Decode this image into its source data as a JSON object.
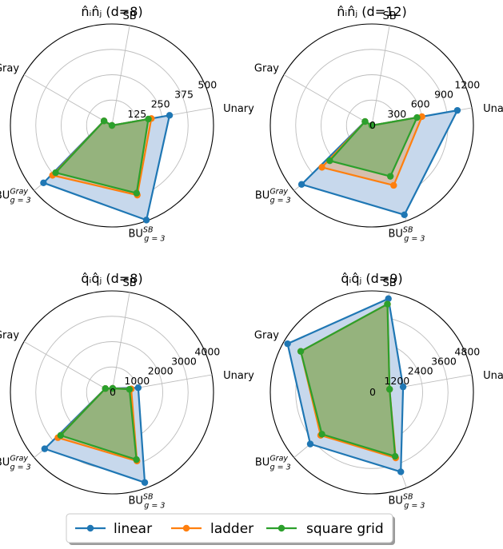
{
  "legend": {
    "items": [
      {
        "label": "linear",
        "color": "#1f77b4"
      },
      {
        "label": "ladder",
        "color": "#ff7f0e"
      },
      {
        "label": "square grid",
        "color": "#2ca02c"
      }
    ]
  },
  "chart_data": [
    {
      "type": "radar",
      "title": "n̂ᵢn̂ⱼ (d=8)",
      "title_parts": {
        "op": "n",
        "d": "d=8"
      },
      "axes": [
        "Unary",
        "SB",
        "Gray",
        "BU_Gray_g=3",
        "BU_SB_g=3"
      ],
      "axis_labels": [
        "Unary",
        "SB",
        "Gray",
        "BU",
        "BU"
      ],
      "axis_superscripts": [
        "",
        "",
        "",
        "Gray",
        "SB"
      ],
      "axis_subscripts": [
        "",
        "",
        "",
        "g = 3",
        "g = 3"
      ],
      "rmax": 500,
      "rticks": [
        125,
        250,
        375,
        500
      ],
      "rtick_labels": [
        "125",
        "250",
        "375",
        "500"
      ],
      "show_zero": false,
      "series": [
        {
          "name": "linear",
          "values": [
            288,
            0,
            45,
            440,
            496
          ]
        },
        {
          "name": "ladder",
          "values": [
            197,
            0,
            45,
            382,
            365
          ]
        },
        {
          "name": "square grid",
          "values": [
            182,
            0,
            45,
            362,
            355
          ]
        }
      ]
    },
    {
      "type": "radar",
      "title": "n̂ᵢn̂ⱼ (d=12)",
      "title_parts": {
        "op": "n",
        "d": "d=12"
      },
      "axes": [
        "Unary",
        "SB",
        "Gray",
        "BU_Gray_g=3",
        "BU_SB_g=3"
      ],
      "axis_labels": [
        "Unary",
        "SB",
        "Gray",
        "BU",
        "BU"
      ],
      "axis_superscripts": [
        "",
        "",
        "",
        "Gray",
        "SB"
      ],
      "axis_subscripts": [
        "",
        "",
        "",
        "g = 3",
        "g = 3"
      ],
      "rmax": 1200,
      "rticks": [
        300,
        600,
        900,
        1200
      ],
      "rtick_labels": [
        "300",
        "600",
        "900",
        "1200"
      ],
      "show_zero": true,
      "series": [
        {
          "name": "linear",
          "values": [
            1026,
            0,
            93,
            1084,
            1124
          ]
        },
        {
          "name": "ladder",
          "values": [
            601,
            0,
            93,
            770,
            754
          ]
        },
        {
          "name": "square grid",
          "values": [
            542,
            0,
            93,
            649,
            640
          ]
        }
      ]
    },
    {
      "type": "radar",
      "title": "q̂ᵢq̂ⱼ (d=8)",
      "title_parts": {
        "op": "q",
        "d": "d=8"
      },
      "axes": [
        "Unary",
        "SB",
        "Gray",
        "BU_Gray_g=3",
        "BU_SB_g=3"
      ],
      "axis_labels": [
        "Unary",
        "SB",
        "Gray",
        "BU",
        "BU"
      ],
      "axis_superscripts": [
        "",
        "",
        "",
        "Gray",
        "SB"
      ],
      "axis_subscripts": [
        "",
        "",
        "",
        "g = 3",
        "g = 3"
      ],
      "rmax": 4000,
      "rticks": [
        1000,
        2000,
        3000,
        4000
      ],
      "rtick_labels": [
        "1000",
        "2000",
        "3000",
        "4000"
      ],
      "show_zero": true,
      "series": [
        {
          "name": "linear",
          "values": [
            1050,
            160,
            300,
            3460,
            3780
          ]
        },
        {
          "name": "ladder",
          "values": [
            770,
            160,
            300,
            2780,
            2880
          ]
        },
        {
          "name": "square grid",
          "values": [
            700,
            160,
            300,
            2640,
            2820
          ]
        }
      ]
    },
    {
      "type": "radar",
      "title": "q̂ᵢq̂ⱼ (d=9)",
      "title_parts": {
        "op": "q",
        "d": "d=9"
      },
      "axes": [
        "Unary",
        "SB",
        "Gray",
        "BU_Gray_g=3",
        "BU_SB_g=3"
      ],
      "axis_labels": [
        "Unary",
        "SB",
        "Gray",
        "BU",
        "BU"
      ],
      "axis_superscripts": [
        "",
        "",
        "",
        "Gray",
        "SB"
      ],
      "axis_subscripts": [
        "",
        "",
        "",
        "g = 3",
        "g = 3"
      ],
      "rmax": 4800,
      "rticks": [
        1200,
        2400,
        3600,
        4800
      ],
      "rtick_labels": [
        "1200",
        "2400",
        "3600",
        "4800"
      ],
      "show_zero": true,
      "series": [
        {
          "name": "linear",
          "values": [
            1500,
            4500,
            4600,
            3800,
            4000
          ]
        },
        {
          "name": "ladder",
          "values": [
            850,
            4240,
            3880,
            3160,
            3300
          ]
        },
        {
          "name": "square grid",
          "values": [
            850,
            4240,
            3880,
            3080,
            3220
          ]
        }
      ]
    }
  ]
}
